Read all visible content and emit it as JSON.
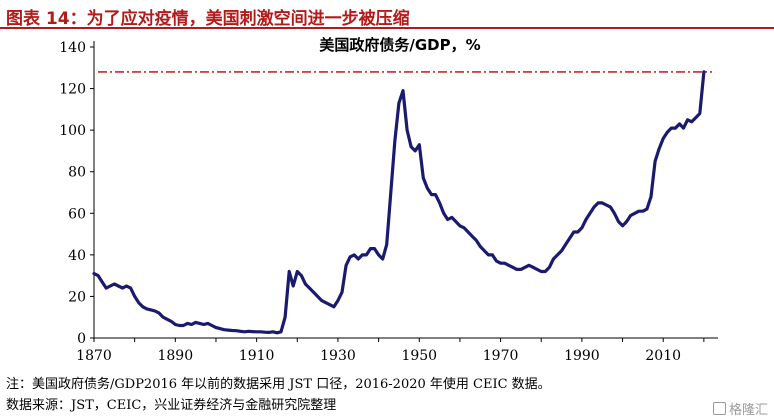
{
  "figure": {
    "title": "图表 14：为了应对疫情，美国刺激空间进一步被压缩"
  },
  "colors": {
    "title": "#b31b1b",
    "series": "#1a1a6e",
    "reference_line": "#c00000"
  },
  "chart_data": {
    "type": "line",
    "title": "美国政府债务/GDP，%",
    "xlabel": "",
    "ylabel": "",
    "xlim": [
      1870,
      2022
    ],
    "ylim": [
      0,
      140
    ],
    "xticks": [
      1870,
      1890,
      1910,
      1930,
      1950,
      1970,
      1990,
      2010
    ],
    "yticks": [
      0,
      20,
      40,
      60,
      80,
      100,
      120,
      140
    ],
    "grid": false,
    "legend": "none",
    "reference_line": {
      "y": 128,
      "style": "dash-dot"
    },
    "series": [
      {
        "x": [
          1870,
          1871,
          1872,
          1873,
          1874,
          1875,
          1876,
          1877,
          1878,
          1879,
          1880,
          1881,
          1882,
          1883,
          1884,
          1885,
          1886,
          1887,
          1888,
          1889,
          1890,
          1891,
          1892,
          1893,
          1894,
          1895,
          1896,
          1897,
          1898,
          1899,
          1900,
          1901,
          1902,
          1903,
          1904,
          1905,
          1906,
          1907,
          1908,
          1909,
          1910,
          1911,
          1912,
          1913,
          1914,
          1915,
          1916,
          1917,
          1918,
          1919,
          1920,
          1921,
          1922,
          1923,
          1924,
          1925,
          1926,
          1927,
          1928,
          1929,
          1930,
          1931,
          1932,
          1933,
          1934,
          1935,
          1936,
          1937,
          1938,
          1939,
          1940,
          1941,
          1942,
          1943,
          1944,
          1945,
          1946,
          1947,
          1948,
          1949,
          1950,
          1951,
          1952,
          1953,
          1954,
          1955,
          1956,
          1957,
          1958,
          1959,
          1960,
          1961,
          1962,
          1963,
          1964,
          1965,
          1966,
          1967,
          1968,
          1969,
          1970,
          1971,
          1972,
          1973,
          1974,
          1975,
          1976,
          1977,
          1978,
          1979,
          1980,
          1981,
          1982,
          1983,
          1984,
          1985,
          1986,
          1987,
          1988,
          1989,
          1990,
          1991,
          1992,
          1993,
          1994,
          1995,
          1996,
          1997,
          1998,
          1999,
          2000,
          2001,
          2002,
          2003,
          2004,
          2005,
          2006,
          2007,
          2008,
          2009,
          2010,
          2011,
          2012,
          2013,
          2014,
          2015,
          2016,
          2017,
          2018,
          2019,
          2020
        ],
        "values": [
          31,
          30,
          27,
          24,
          25,
          26,
          25,
          24,
          25,
          24,
          20,
          17,
          15,
          14,
          13.5,
          13,
          12,
          10,
          9,
          8,
          6.5,
          6,
          6,
          7,
          6.5,
          7.5,
          7,
          6.5,
          7,
          6,
          5,
          4.5,
          4,
          3.8,
          3.6,
          3.5,
          3.2,
          3,
          3.2,
          3.1,
          3,
          3,
          2.8,
          2.7,
          3,
          2.5,
          3,
          10,
          32,
          25,
          32,
          30,
          26,
          24,
          22,
          20,
          18,
          17,
          16,
          15,
          18,
          22,
          35,
          39,
          40,
          38,
          40,
          40,
          43,
          43,
          40,
          38,
          45,
          70,
          95,
          113,
          119,
          100,
          92,
          90,
          93,
          77,
          72,
          69,
          69,
          65,
          60,
          57,
          58,
          56,
          54,
          53,
          51,
          49,
          47,
          44,
          42,
          40,
          40,
          37,
          36,
          36,
          35,
          34,
          33,
          33,
          34,
          35,
          34,
          33,
          32,
          32,
          34,
          38,
          40,
          42,
          45,
          48,
          51,
          51,
          53,
          57,
          60,
          63,
          65,
          65,
          64,
          63,
          60,
          56,
          54,
          56,
          59,
          60,
          61,
          61,
          62,
          68,
          85,
          91,
          96,
          99,
          101,
          101,
          103,
          101,
          105,
          104,
          106,
          108,
          128
        ]
      }
    ]
  },
  "footer": {
    "note": "注：美国政府债务/GDP2016 年以前的数据采用 JST 口径，2016-2020 年使用 CEIC 数据。",
    "source": "数据来源：JST，CEIC，兴业证券经济与金融研究院整理"
  },
  "watermark": {
    "text": "格隆汇",
    "icon": "logo-box-icon"
  }
}
